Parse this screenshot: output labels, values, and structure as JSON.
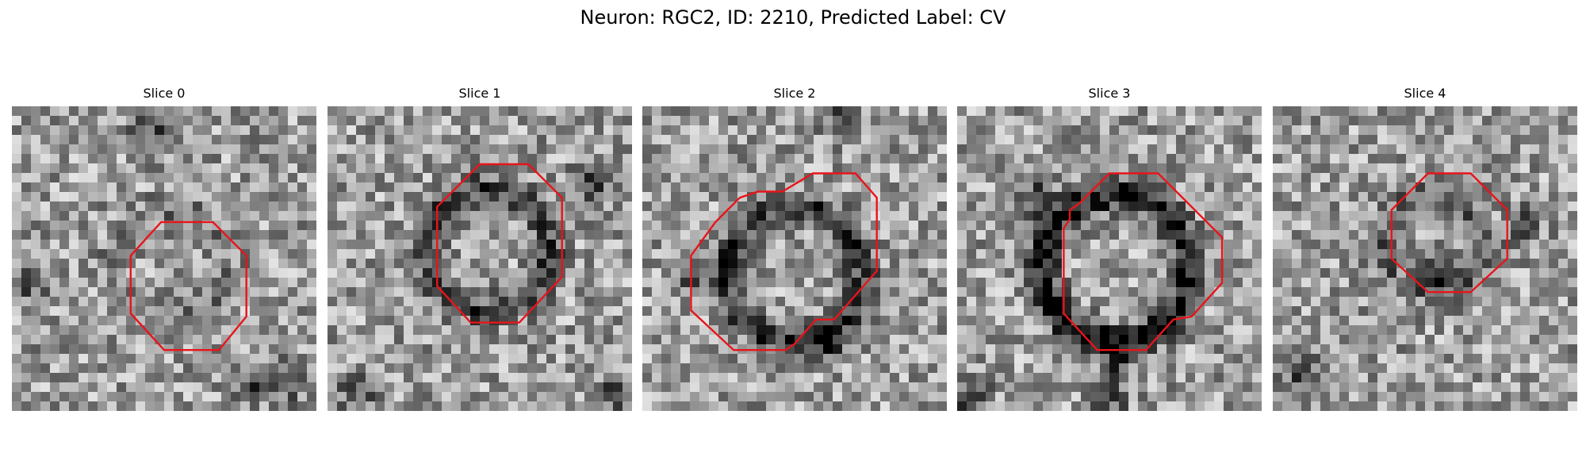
{
  "figure": {
    "title": "Neuron: RGC2, ID: 2210, Predicted Label: CV"
  },
  "slices": [
    {
      "label": "Slice 0",
      "seed": 11,
      "blob_center": [
        0.52,
        0.52
      ],
      "blob_radius": 0.18,
      "ring_contrast": 0.15,
      "dark_spots": [
        [
          0.06,
          0.58
        ],
        [
          0.78,
          0.92
        ],
        [
          0.45,
          0.08
        ],
        [
          0.92,
          0.9
        ]
      ],
      "contour": [
        [
          0.49,
          0.38
        ],
        [
          0.66,
          0.38
        ],
        [
          0.77,
          0.49
        ],
        [
          0.77,
          0.69
        ],
        [
          0.68,
          0.8
        ],
        [
          0.5,
          0.8
        ],
        [
          0.39,
          0.68
        ],
        [
          0.39,
          0.49
        ]
      ]
    },
    {
      "label": "Slice 1",
      "seed": 23,
      "blob_center": [
        0.53,
        0.47
      ],
      "blob_radius": 0.2,
      "ring_contrast": 0.35,
      "dark_spots": [
        [
          0.86,
          0.25
        ],
        [
          0.1,
          0.95
        ],
        [
          0.95,
          0.95
        ]
      ],
      "contour": [
        [
          0.5,
          0.19
        ],
        [
          0.66,
          0.19
        ],
        [
          0.77,
          0.3
        ],
        [
          0.77,
          0.56
        ],
        [
          0.63,
          0.71
        ],
        [
          0.47,
          0.71
        ],
        [
          0.36,
          0.59
        ],
        [
          0.36,
          0.33
        ]
      ]
    },
    {
      "label": "Slice 2",
      "seed": 37,
      "blob_center": [
        0.5,
        0.55
      ],
      "blob_radius": 0.22,
      "ring_contrast": 0.4,
      "dark_spots": [
        [
          0.62,
          0.78
        ],
        [
          0.18,
          0.55
        ],
        [
          0.65,
          0.05
        ]
      ],
      "contour": [
        [
          0.46,
          0.28
        ],
        [
          0.56,
          0.22
        ],
        [
          0.7,
          0.22
        ],
        [
          0.77,
          0.3
        ],
        [
          0.77,
          0.54
        ],
        [
          0.63,
          0.7
        ],
        [
          0.57,
          0.7
        ],
        [
          0.5,
          0.78
        ],
        [
          0.47,
          0.8
        ],
        [
          0.3,
          0.8
        ],
        [
          0.16,
          0.67
        ],
        [
          0.16,
          0.49
        ],
        [
          0.24,
          0.38
        ],
        [
          0.32,
          0.3
        ],
        [
          0.38,
          0.28
        ]
      ]
    },
    {
      "label": "Slice 3",
      "seed": 41,
      "blob_center": [
        0.52,
        0.53
      ],
      "blob_radius": 0.24,
      "ring_contrast": 0.55,
      "dark_spots": [
        [
          0.27,
          0.3
        ],
        [
          0.52,
          0.82
        ],
        [
          0.05,
          0.97
        ],
        [
          0.5,
          0.95
        ]
      ],
      "contour": [
        [
          0.5,
          0.22
        ],
        [
          0.66,
          0.22
        ],
        [
          0.87,
          0.43
        ],
        [
          0.87,
          0.58
        ],
        [
          0.77,
          0.69
        ],
        [
          0.71,
          0.7
        ],
        [
          0.62,
          0.8
        ],
        [
          0.46,
          0.8
        ],
        [
          0.35,
          0.68
        ],
        [
          0.35,
          0.4
        ],
        [
          0.37,
          0.37
        ],
        [
          0.37,
          0.34
        ],
        [
          0.4,
          0.32
        ]
      ]
    },
    {
      "label": "Slice 4",
      "seed": 53,
      "blob_center": [
        0.52,
        0.45
      ],
      "blob_radius": 0.16,
      "ring_contrast": 0.2,
      "dark_spots": [
        [
          0.55,
          0.55
        ],
        [
          0.82,
          0.4
        ],
        [
          0.1,
          0.88
        ]
      ],
      "contour": [
        [
          0.51,
          0.22
        ],
        [
          0.65,
          0.22
        ],
        [
          0.77,
          0.34
        ],
        [
          0.77,
          0.5
        ],
        [
          0.65,
          0.61
        ],
        [
          0.51,
          0.61
        ],
        [
          0.39,
          0.5
        ],
        [
          0.39,
          0.34
        ]
      ]
    }
  ]
}
